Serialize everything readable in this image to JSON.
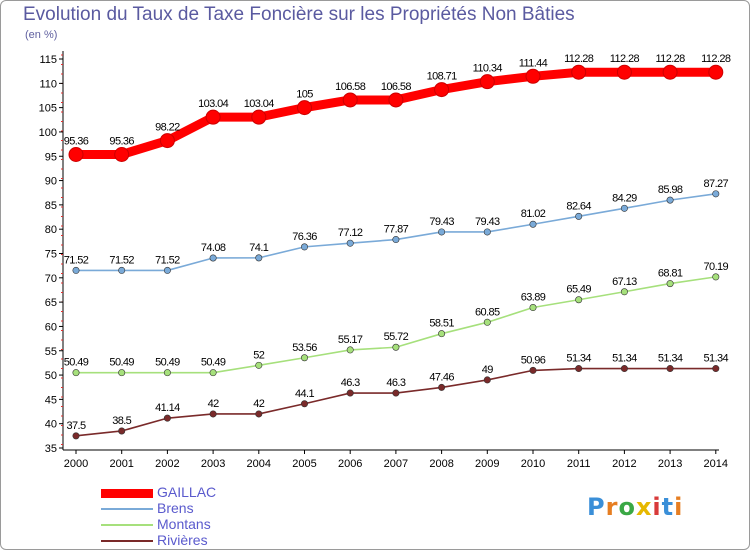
{
  "title": "Evolution du Taux de Taxe Foncière sur les Propriétés Non Bâties",
  "subtitle": "(en %)",
  "brand": "Proxiti",
  "chart_data": {
    "type": "line",
    "x": [
      "2000",
      "2001",
      "2002",
      "2003",
      "2004",
      "2005",
      "2006",
      "2007",
      "2008",
      "2009",
      "2010",
      "2011",
      "2012",
      "2013",
      "2014"
    ],
    "yticks": [
      35,
      40,
      45,
      50,
      55,
      60,
      65,
      70,
      75,
      80,
      85,
      90,
      95,
      100,
      105,
      110,
      115
    ],
    "ylim": [
      35,
      115
    ],
    "grid": false,
    "legend_position": "bottom-left",
    "series": [
      {
        "name": "GAILLAC",
        "color": "#ff0000",
        "labels": [
          "95.36",
          "95.36",
          "98.22",
          "103.04",
          "103.04",
          "105",
          "106.58",
          "106.58",
          "108.71",
          "110.34",
          "111.44",
          "112.28",
          "112.28",
          "112.28",
          "112.28"
        ],
        "values": [
          95.36,
          95.36,
          98.22,
          103.04,
          103.04,
          105,
          106.58,
          106.58,
          108.71,
          110.34,
          111.44,
          112.28,
          112.28,
          112.28,
          112.28
        ]
      },
      {
        "name": "Brens",
        "color": "#7aaad8",
        "labels": [
          "71.52",
          "71.52",
          "71.52",
          "74.08",
          "74.1",
          "76.36",
          "77.12",
          "77.87",
          "79.43",
          "79.43",
          "81.02",
          "82.64",
          "84.29",
          "85.98",
          "87.27"
        ],
        "values": [
          71.52,
          71.52,
          71.52,
          74.08,
          74.1,
          76.36,
          77.12,
          77.87,
          79.43,
          79.43,
          81.02,
          82.64,
          84.29,
          85.98,
          87.27
        ]
      },
      {
        "name": "Montans",
        "color": "#a6e07c",
        "labels": [
          "50.49",
          "50.49",
          "50.49",
          "50.49",
          "52",
          "53.56",
          "55.17",
          "55.72",
          "58.51",
          "60.85",
          "63.89",
          "65.49",
          "67.13",
          "68.81",
          "70.19"
        ],
        "values": [
          50.49,
          50.49,
          50.49,
          50.49,
          52,
          53.56,
          55.17,
          55.72,
          58.51,
          60.85,
          63.89,
          65.49,
          67.13,
          68.81,
          70.19
        ]
      },
      {
        "name": "Rivières",
        "color": "#7a2a2a",
        "labels": [
          "37.5",
          "38.5",
          "41.14",
          "42",
          "42",
          "44.1",
          "46.3",
          "46.3",
          "47.46",
          "49",
          "50.96",
          "51.34",
          "51.34",
          "51.34",
          "51.34"
        ],
        "values": [
          37.5,
          38.5,
          41.14,
          42,
          42,
          44.1,
          46.3,
          46.3,
          47.46,
          49,
          50.96,
          51.34,
          51.34,
          51.34,
          51.34
        ]
      }
    ]
  }
}
